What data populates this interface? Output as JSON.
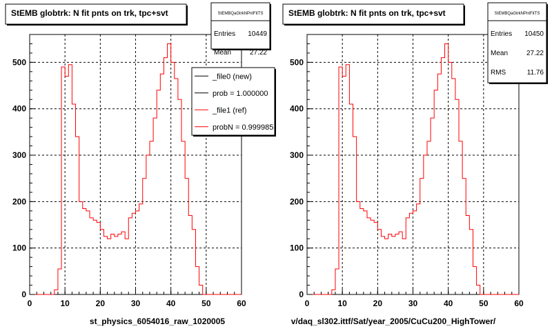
{
  "colors": {
    "ref_line": "#ff0000",
    "new_line": "#000000",
    "grid": "#000000",
    "frame": "#000000"
  },
  "footer_text": "",
  "chart_data": [
    {
      "type": "line",
      "title": "StEMB globtrk: N fit pnts on trk, tpc+svt",
      "xlabel": "st_physics_6054016_raw_1020005",
      "ylabel": "",
      "xlim": [
        0,
        60
      ],
      "ylim": [
        0,
        560
      ],
      "x_ticks": [
        0,
        10,
        20,
        30,
        40,
        50,
        60
      ],
      "y_ticks": [
        0,
        100,
        200,
        300,
        400,
        500
      ],
      "grid": true,
      "stats": {
        "title": "StEMBQaGtrkNPntFitTS",
        "rows": [
          {
            "label": "Entries",
            "value": "10449"
          },
          {
            "label": "Mean",
            "value": "27.22"
          }
        ]
      },
      "legend": {
        "position": "top-right",
        "entries": [
          {
            "label": "_file0 (new)",
            "color": "#000000"
          },
          {
            "label": "prob = 1.000000",
            "color": "#000000"
          },
          {
            "label": "_file1 (ref)",
            "color": "#ff0000"
          },
          {
            "label": "probN = 0.999985",
            "color": "#ff0000"
          }
        ]
      },
      "series": [
        {
          "name": "_file1 (ref)",
          "color": "#ff0000",
          "x": [
            0,
            1,
            2,
            3,
            4,
            5,
            6,
            7,
            8,
            9,
            10,
            11,
            12,
            13,
            14,
            15,
            16,
            17,
            18,
            19,
            20,
            21,
            22,
            23,
            24,
            25,
            26,
            27,
            28,
            29,
            30,
            31,
            32,
            33,
            34,
            35,
            36,
            37,
            38,
            39,
            40,
            41,
            42,
            43,
            44,
            45,
            46,
            47,
            48,
            49,
            50,
            51,
            52,
            53,
            54,
            55,
            56,
            57,
            58,
            59
          ],
          "values": [
            0,
            0,
            0,
            0,
            0,
            0,
            0,
            10,
            55,
            490,
            470,
            495,
            410,
            340,
            200,
            185,
            180,
            165,
            160,
            155,
            140,
            125,
            120,
            130,
            125,
            130,
            135,
            120,
            165,
            175,
            180,
            195,
            250,
            300,
            330,
            380,
            440,
            475,
            510,
            540,
            500,
            465,
            420,
            330,
            250,
            170,
            140,
            60,
            20,
            0,
            0,
            0,
            0,
            0,
            0,
            0,
            0,
            0,
            0,
            0
          ]
        }
      ]
    },
    {
      "type": "line",
      "title": "StEMB globtrk: N fit pnts on trk, tpc+svt",
      "xlabel": "v/daq_sl302.ittf/Sat/year_2005/CuCu200_HighTower/",
      "ylabel": "",
      "xlim": [
        0,
        60
      ],
      "ylim": [
        0,
        560
      ],
      "x_ticks": [
        0,
        10,
        20,
        30,
        40,
        50,
        60
      ],
      "y_ticks": [
        0,
        100,
        200,
        300,
        400,
        500
      ],
      "grid": true,
      "stats": {
        "title": "StEMBQaGtrkNPntFitTS",
        "rows": [
          {
            "label": "Entries",
            "value": "10450"
          },
          {
            "label": "Mean",
            "value": "27.22"
          },
          {
            "label": "RMS",
            "value": "11.76"
          }
        ]
      },
      "series": [
        {
          "name": "",
          "color": "#ff0000",
          "x": [
            0,
            1,
            2,
            3,
            4,
            5,
            6,
            7,
            8,
            9,
            10,
            11,
            12,
            13,
            14,
            15,
            16,
            17,
            18,
            19,
            20,
            21,
            22,
            23,
            24,
            25,
            26,
            27,
            28,
            29,
            30,
            31,
            32,
            33,
            34,
            35,
            36,
            37,
            38,
            39,
            40,
            41,
            42,
            43,
            44,
            45,
            46,
            47,
            48,
            49,
            50,
            51,
            52,
            53,
            54,
            55,
            56,
            57,
            58,
            59
          ],
          "values": [
            0,
            0,
            0,
            0,
            0,
            0,
            0,
            10,
            55,
            490,
            470,
            495,
            410,
            340,
            200,
            185,
            180,
            165,
            160,
            155,
            140,
            125,
            120,
            130,
            125,
            130,
            135,
            120,
            165,
            175,
            180,
            195,
            250,
            300,
            330,
            380,
            440,
            475,
            510,
            540,
            500,
            465,
            420,
            330,
            250,
            170,
            140,
            60,
            20,
            0,
            0,
            0,
            0,
            0,
            0,
            0,
            0,
            0,
            0,
            0
          ]
        }
      ]
    }
  ]
}
